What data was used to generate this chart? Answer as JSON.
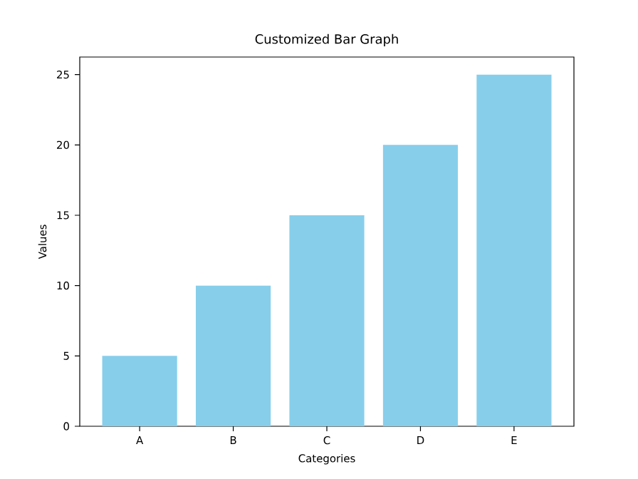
{
  "chart_data": {
    "type": "bar",
    "title": "Customized Bar Graph",
    "xlabel": "Categories",
    "ylabel": "Values",
    "categories": [
      "A",
      "B",
      "C",
      "D",
      "E"
    ],
    "values": [
      5,
      10,
      15,
      20,
      25
    ],
    "color": "#87ceeb",
    "ylim": [
      0,
      26.25
    ],
    "yticks": [
      0,
      5,
      10,
      15,
      20,
      25
    ],
    "grid": false
  }
}
